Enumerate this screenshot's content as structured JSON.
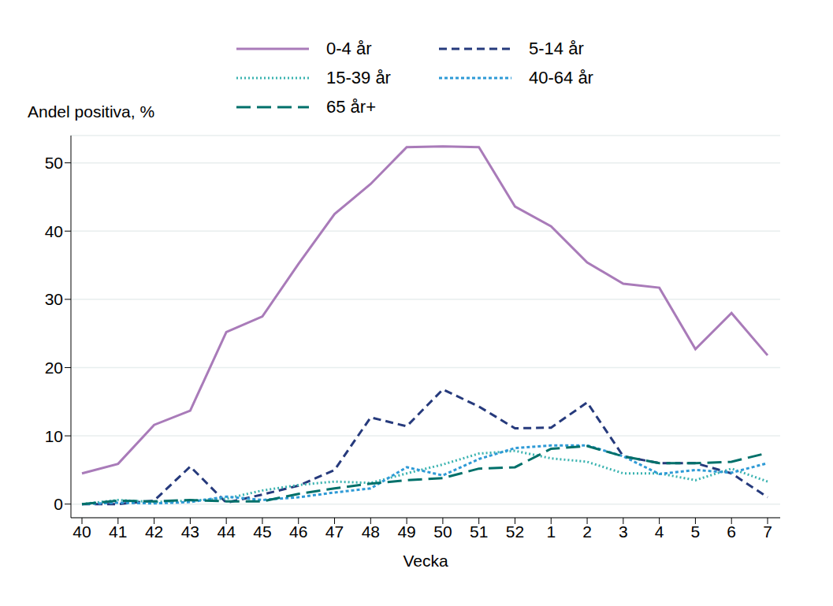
{
  "chart_data": {
    "type": "line",
    "x_label": "Vecka",
    "y_label": "Andel positiva, %",
    "categories": [
      "40",
      "41",
      "42",
      "43",
      "44",
      "45",
      "46",
      "47",
      "48",
      "49",
      "50",
      "51",
      "52",
      "1",
      "2",
      "3",
      "4",
      "5",
      "6",
      "7"
    ],
    "series": [
      {
        "name": "0-4 år",
        "color": "#a97bb9",
        "line_style": "solid",
        "values": [
          4.5,
          5.9,
          11.6,
          13.7,
          25.2,
          27.5,
          35.2,
          42.5,
          46.9,
          52.3,
          52.4,
          52.3,
          43.6,
          40.7,
          35.4,
          32.3,
          31.7,
          22.7,
          28.0,
          21.8
        ]
      },
      {
        "name": "5-14 år",
        "color": "#263a7c",
        "line_style": "dash",
        "values": [
          0,
          0,
          0.5,
          5.5,
          0.2,
          1.4,
          2.7,
          5.0,
          12.7,
          11.4,
          16.8,
          14.3,
          11.1,
          11.2,
          14.9,
          7.0,
          6.0,
          6.0,
          4.5,
          1.0
        ]
      },
      {
        "name": "15-39 år",
        "color": "#3ab3b0",
        "line_style": "dot",
        "values": [
          0,
          0.6,
          0.3,
          0.5,
          0.8,
          2.0,
          2.8,
          3.3,
          3.1,
          4.5,
          5.8,
          7.4,
          7.8,
          6.7,
          6.2,
          4.5,
          4.5,
          3.5,
          5.2,
          3.3
        ]
      },
      {
        "name": "40-64 år",
        "color": "#2e9ad6",
        "line_style": "shortdash",
        "values": [
          0,
          0.2,
          0.1,
          0.3,
          1.1,
          0.6,
          1.0,
          1.7,
          2.3,
          5.4,
          4.2,
          6.6,
          8.2,
          8.6,
          8.6,
          7.0,
          4.4,
          5.0,
          4.6,
          6.0
        ]
      },
      {
        "name": "65 år+",
        "color": "#00706a",
        "line_style": "longdash",
        "values": [
          0,
          0.5,
          0.4,
          0.6,
          0.4,
          0.4,
          1.5,
          2.3,
          3.0,
          3.5,
          3.8,
          5.2,
          5.4,
          8.1,
          8.5,
          7.0,
          6.0,
          6.0,
          6.2,
          7.5
        ]
      }
    ],
    "ylim": [
      -2,
      54
    ],
    "yticks": [
      0,
      10,
      20,
      30,
      40,
      50
    ],
    "grid": true,
    "legend": "top"
  }
}
